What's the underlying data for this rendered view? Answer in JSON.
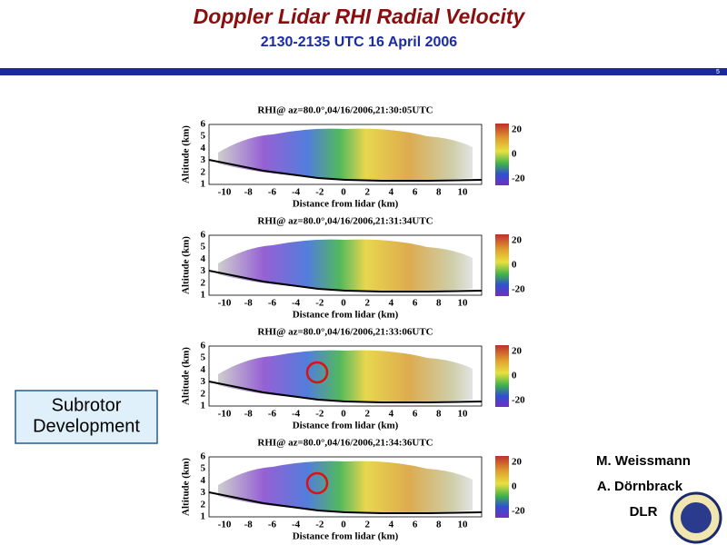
{
  "header": {
    "title": "Doppler Lidar RHI Radial Velocity",
    "subtitle": "2130-2135 UTC 16 April 2006",
    "page_number": "5"
  },
  "panels": [
    {
      "title": "RHI@ az=80.0°,04/16/2006,21:30:05UTC"
    },
    {
      "title": "RHI@ az=80.0°,04/16/2006,21:31:34UTC"
    },
    {
      "title": "RHI@ az=80.0°,04/16/2006,21:33:06UTC"
    },
    {
      "title": "RHI@ az=80.0°,04/16/2006,21:34:36UTC"
    }
  ],
  "axes": {
    "y_label": "Altitude (km)",
    "x_label": "Distance from lidar (km)",
    "x_ticks": [
      "-10",
      "-8",
      "-6",
      "-4",
      "-2",
      "0",
      "2",
      "4",
      "6",
      "8",
      "10"
    ],
    "y_ticks": [
      "1",
      "2",
      "3",
      "4",
      "5",
      "6"
    ],
    "colorbar_ticks": [
      "20",
      "0",
      "-20"
    ]
  },
  "callout": {
    "lines": [
      "Subrotor",
      "Development"
    ]
  },
  "authors": [
    "M. Weissmann",
    "A. Dörnbrack",
    "DLR"
  ]
}
